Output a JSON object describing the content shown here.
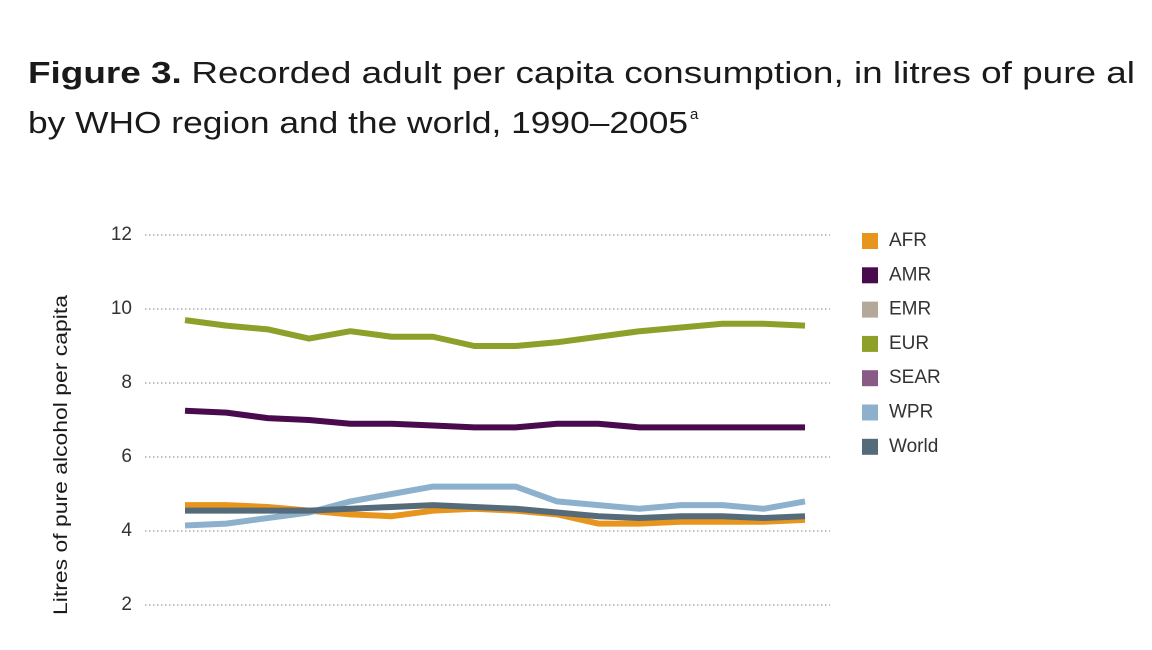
{
  "chart_data": {
    "type": "line",
    "title_label": "Figure 3.",
    "title": "Recorded adult per capita consumption, in litres of pure al",
    "subtitle": "by WHO region and the world, 1990–2005",
    "subtitle_note": "a",
    "y_label": "Litres of pure alcohol per capita",
    "categories": [
      null,
      null,
      null,
      null,
      null,
      null,
      null,
      null,
      null,
      null,
      null,
      null,
      null,
      null,
      null,
      null
    ],
    "ylim": [
      2,
      12
    ],
    "yticks": [
      2,
      4,
      6,
      8,
      10,
      12
    ],
    "grid": true,
    "legend": "right",
    "series": [
      {
        "name": "AFR",
        "color": "#e8951e",
        "values": [
          4.7,
          4.7,
          4.65,
          4.55,
          4.45,
          4.4,
          4.55,
          4.6,
          4.55,
          4.45,
          4.2,
          4.2,
          4.25,
          4.25,
          4.25,
          4.3
        ]
      },
      {
        "name": "AMR",
        "color": "#4a0a4e",
        "values": [
          7.25,
          7.2,
          7.05,
          7.0,
          6.9,
          6.9,
          6.85,
          6.8,
          6.8,
          6.9,
          6.9,
          6.8,
          6.8,
          6.8,
          6.8,
          6.8
        ]
      },
      {
        "name": "EMR",
        "color": "#b3a89a",
        "values": [
          null,
          null,
          null,
          null,
          null,
          null,
          null,
          null,
          null,
          null,
          null,
          null,
          null,
          null,
          null,
          null
        ]
      },
      {
        "name": "EUR",
        "color": "#8ea029",
        "values": [
          9.7,
          9.55,
          9.45,
          9.2,
          9.4,
          9.25,
          9.25,
          9.0,
          9.0,
          9.1,
          9.25,
          9.4,
          9.5,
          9.6,
          9.6,
          9.55
        ]
      },
      {
        "name": "SEAR",
        "color": "#8a5a86",
        "values": [
          null,
          null,
          null,
          null,
          null,
          null,
          null,
          null,
          null,
          null,
          null,
          null,
          null,
          null,
          null,
          null
        ]
      },
      {
        "name": "WPR",
        "color": "#8db1cc",
        "values": [
          4.15,
          4.2,
          4.35,
          4.5,
          4.8,
          5.0,
          5.2,
          5.2,
          5.2,
          4.8,
          4.7,
          4.6,
          4.7,
          4.7,
          4.6,
          4.8
        ]
      },
      {
        "name": "World",
        "color": "#556b7a",
        "values": [
          4.55,
          4.55,
          4.55,
          4.55,
          4.6,
          4.65,
          4.7,
          4.65,
          4.6,
          4.5,
          4.4,
          4.35,
          4.4,
          4.4,
          4.35,
          4.4
        ]
      }
    ]
  }
}
